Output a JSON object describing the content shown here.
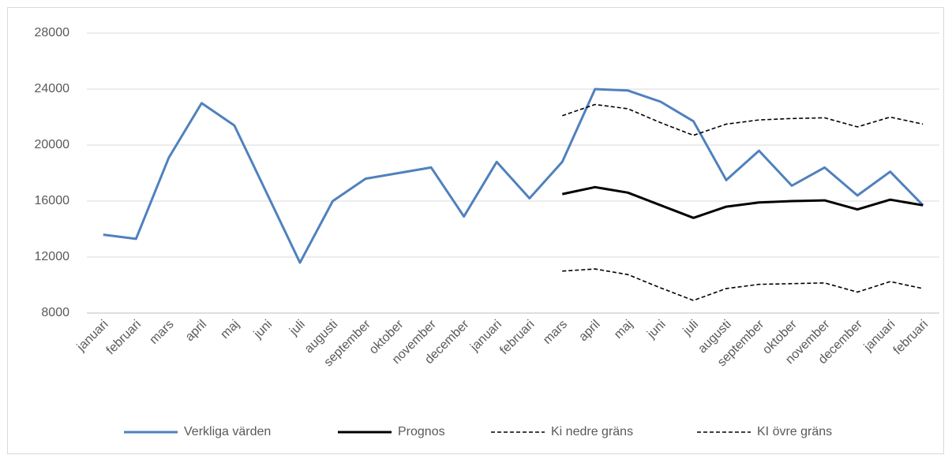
{
  "chart_data": {
    "type": "line",
    "categories": [
      "januari",
      "februari",
      "mars",
      "april",
      "maj",
      "juni",
      "juli",
      "augusti",
      "september",
      "oktober",
      "november",
      "december",
      "januari",
      "februari",
      "mars",
      "april",
      "maj",
      "juni",
      "juli",
      "augusti",
      "september",
      "oktober",
      "november",
      "december",
      "januari",
      "februari"
    ],
    "series": [
      {
        "name": "Verkliga värden",
        "color": "#4f81bd",
        "dashed": false,
        "values": [
          13600,
          13300,
          19100,
          23000,
          21400,
          16500,
          11600,
          16000,
          17600,
          18000,
          18400,
          14900,
          18800,
          16200,
          18800,
          24000,
          23900,
          23100,
          21700,
          17500,
          19600,
          17100,
          18400,
          16400,
          18100,
          15700
        ]
      },
      {
        "name": "Prognos",
        "color": "#000000",
        "dashed": false,
        "values": [
          null,
          null,
          null,
          null,
          null,
          null,
          null,
          null,
          null,
          null,
          null,
          null,
          null,
          null,
          16500,
          17000,
          16600,
          15700,
          14800,
          15600,
          15900,
          16000,
          16050,
          15400,
          16100,
          15700
        ]
      },
      {
        "name": "Ki nedre gräns",
        "color": "#000000",
        "dashed": true,
        "values": [
          null,
          null,
          null,
          null,
          null,
          null,
          null,
          null,
          null,
          null,
          null,
          null,
          null,
          null,
          11000,
          11150,
          10750,
          9800,
          8900,
          9750,
          10050,
          10100,
          10150,
          9500,
          10250,
          9750
        ]
      },
      {
        "name": "KI övre gräns",
        "color": "#000000",
        "dashed": true,
        "values": [
          null,
          null,
          null,
          null,
          null,
          null,
          null,
          null,
          null,
          null,
          null,
          null,
          null,
          null,
          22100,
          22900,
          22600,
          21600,
          20700,
          21500,
          21800,
          21900,
          21950,
          21300,
          22000,
          21500
        ]
      }
    ],
    "ylim": [
      8000,
      28000
    ],
    "yticks": [
      8000,
      12000,
      16000,
      20000,
      24000,
      28000
    ],
    "grid": true,
    "legend": "bottom"
  }
}
